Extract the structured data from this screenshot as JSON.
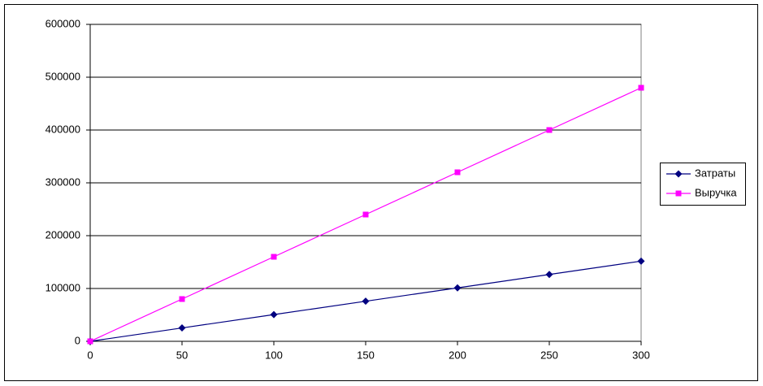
{
  "chart_data": {
    "type": "line",
    "x": [
      0,
      50,
      100,
      150,
      200,
      250,
      300
    ],
    "series": [
      {
        "name": "Затраты",
        "color": "#000080",
        "marker": "diamond",
        "values": [
          0,
          25300,
          50600,
          75900,
          101200,
          126500,
          151800
        ]
      },
      {
        "name": "Выручка",
        "color": "#ff00ff",
        "marker": "square",
        "values": [
          0,
          80000,
          160000,
          240000,
          320000,
          400000,
          480000
        ]
      }
    ],
    "xlim": [
      0,
      300
    ],
    "xticks": [
      0,
      50,
      100,
      150,
      200,
      250,
      300
    ],
    "ylim": [
      0,
      600000
    ],
    "yticks": [
      0,
      100000,
      200000,
      300000,
      400000,
      500000,
      600000
    ],
    "grid": true,
    "legend": "right"
  }
}
